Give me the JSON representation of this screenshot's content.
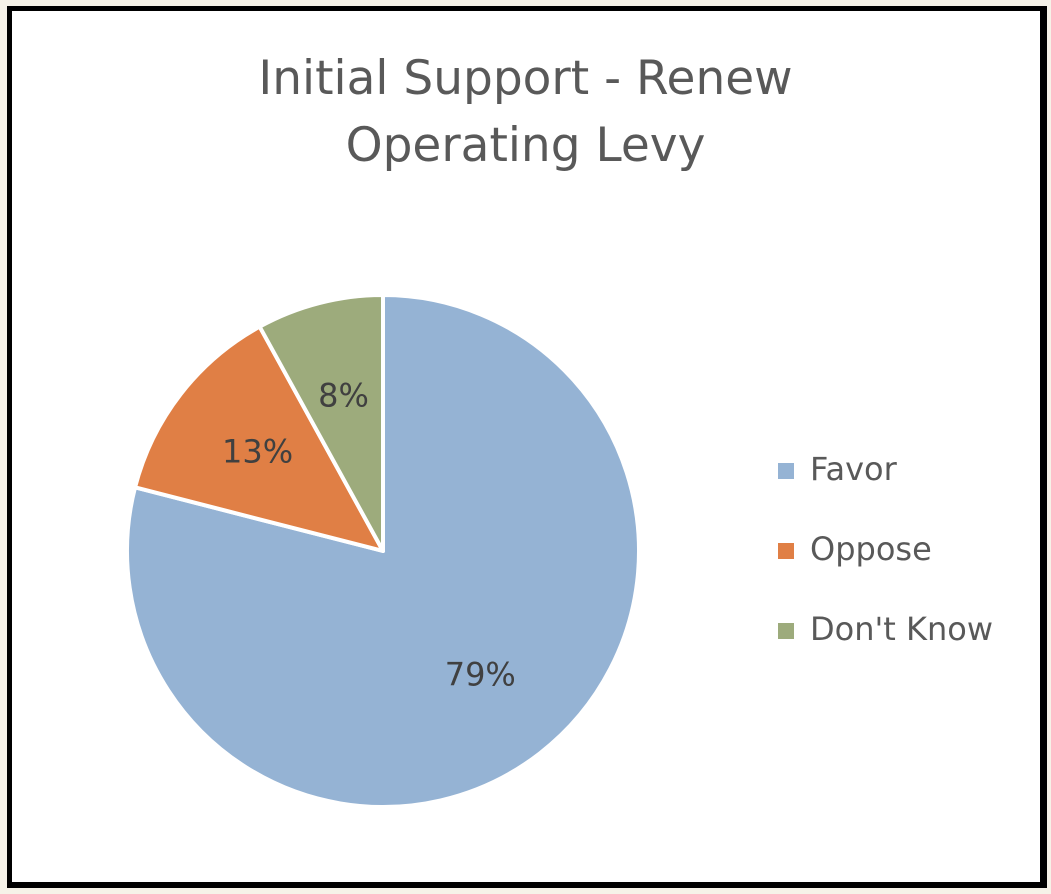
{
  "chart_data": {
    "type": "pie",
    "title_lines": [
      "Initial Support - Renew",
      "Operating Levy"
    ],
    "categories": [
      "Favor",
      "Oppose",
      "Don't Know"
    ],
    "values": [
      79,
      13,
      8
    ],
    "labels": [
      "79%",
      "13%",
      "8%"
    ],
    "colors": [
      "#95b3d4",
      "#e07f45",
      "#9dab7c"
    ],
    "start_angle_deg": 0,
    "direction": "clockwise",
    "legend_position": "right"
  }
}
